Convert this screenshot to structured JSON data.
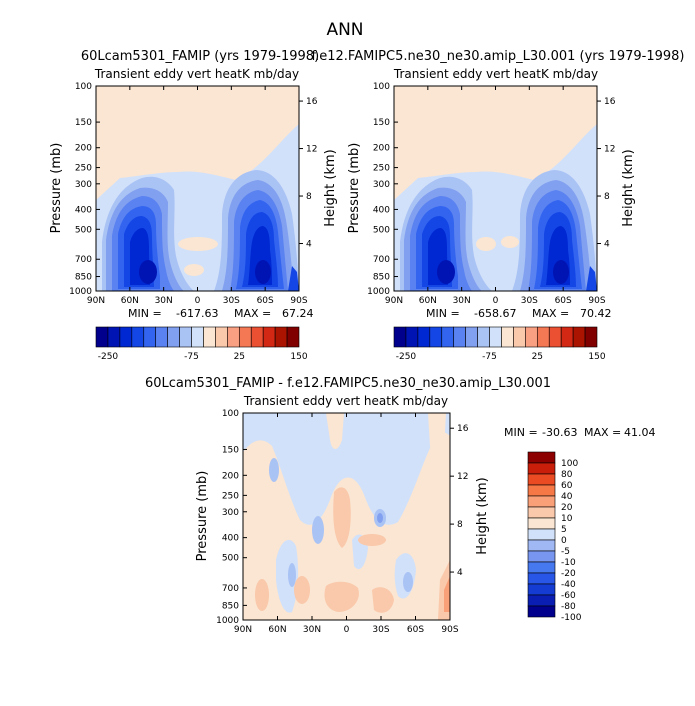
{
  "figure": {
    "title": "ANN"
  },
  "chart_data": [
    {
      "type": "heatmap",
      "panel": "top-left",
      "case_title": "60Lcam5301_FAMIP (yrs 1979-1998)",
      "title": "Transient eddy vert heatK mb/day",
      "xlabel": "",
      "ylabel": "Pressure (mb)",
      "ylabel_right": "Height (km)",
      "x_ticks": [
        "90N",
        "60N",
        "30N",
        "0",
        "30S",
        "60S",
        "90S"
      ],
      "y_ticks": [
        "100",
        "150",
        "200",
        "250",
        "300",
        "400",
        "500",
        "700",
        "850",
        "1000"
      ],
      "y_ticks_right": [
        "16",
        "12",
        "8",
        "4"
      ],
      "min_label": "MIN =",
      "min_value": "-617.63",
      "max_label": "MAX =",
      "max_value": "67.24",
      "colorbar_levels": [
        -250,
        -225,
        -200,
        -175,
        -150,
        -125,
        -100,
        -75,
        -50,
        -25,
        0,
        25,
        50,
        75,
        100,
        125,
        150,
        175,
        200
      ],
      "colorbar_labels": [
        "-250",
        "-75",
        "25",
        "150"
      ],
      "colorbar_orientation": "horizontal"
    },
    {
      "type": "heatmap",
      "panel": "top-right",
      "case_title": "f.e12.FAMIPC5.ne30_ne30.amip_L30.001 (yrs 1979-1998)",
      "title": "Transient eddy vert heatK mb/day",
      "xlabel": "",
      "ylabel": "Pressure (mb)",
      "ylabel_right": "Height (km)",
      "x_ticks": [
        "90N",
        "60N",
        "30N",
        "0",
        "30S",
        "60S",
        "90S"
      ],
      "y_ticks": [
        "100",
        "150",
        "200",
        "250",
        "300",
        "400",
        "500",
        "700",
        "850",
        "1000"
      ],
      "y_ticks_right": [
        "16",
        "12",
        "8",
        "4"
      ],
      "min_label": "MIN =",
      "min_value": "-658.67",
      "max_label": "MAX =",
      "max_value": "70.42",
      "colorbar_levels": [
        -250,
        -225,
        -200,
        -175,
        -150,
        -125,
        -100,
        -75,
        -50,
        -25,
        0,
        25,
        50,
        75,
        100,
        125,
        150,
        175,
        200
      ],
      "colorbar_labels": [
        "-250",
        "-75",
        "25",
        "150"
      ],
      "colorbar_orientation": "horizontal"
    },
    {
      "type": "heatmap",
      "panel": "bottom",
      "case_title": "60Lcam5301_FAMIP - f.e12.FAMIPC5.ne30_ne30.amip_L30.001",
      "title": "Transient eddy vert heatK mb/day",
      "xlabel": "",
      "ylabel": "Pressure (mb)",
      "ylabel_right": "Height (km)",
      "x_ticks": [
        "90N",
        "60N",
        "30N",
        "0",
        "30S",
        "60S",
        "90S"
      ],
      "y_ticks": [
        "100",
        "150",
        "200",
        "250",
        "300",
        "400",
        "500",
        "700",
        "850",
        "1000"
      ],
      "y_ticks_right": [
        "16",
        "12",
        "8",
        "4"
      ],
      "min_label": "MIN =",
      "min_value": "-30.63",
      "max_label": "MAX =",
      "max_value": "41.04",
      "colorbar_levels": [
        -100,
        -80,
        -60,
        -40,
        -20,
        -10,
        -5,
        0,
        5,
        10,
        20,
        40,
        60,
        80,
        100
      ],
      "colorbar_labels": [
        "100",
        "80",
        "60",
        "40",
        "20",
        "10",
        "5",
        "0",
        "-5",
        "-10",
        "-20",
        "-40",
        "-60",
        "-80",
        "-100"
      ],
      "colorbar_orientation": "vertical"
    }
  ],
  "colors": {
    "abs_palette": [
      "#00008c",
      "#0014b4",
      "#0028d2",
      "#1446e6",
      "#3264f0",
      "#5a82f0",
      "#82a0f0",
      "#aac3f5",
      "#d2e1fa",
      "#fae6d2",
      "#fac8aa",
      "#faa082",
      "#f57855",
      "#eb5032",
      "#d22814",
      "#aa1400",
      "#800000"
    ],
    "diff_palette": [
      "#00008c",
      "#0a1eb4",
      "#143cd2",
      "#2856e6",
      "#4678f0",
      "#7896f0",
      "#a0b9f5",
      "#d2e1fa",
      "#fae6d2",
      "#fac8aa",
      "#faa078",
      "#f57846",
      "#eb4b23",
      "#c81e0a",
      "#8c0000"
    ]
  }
}
